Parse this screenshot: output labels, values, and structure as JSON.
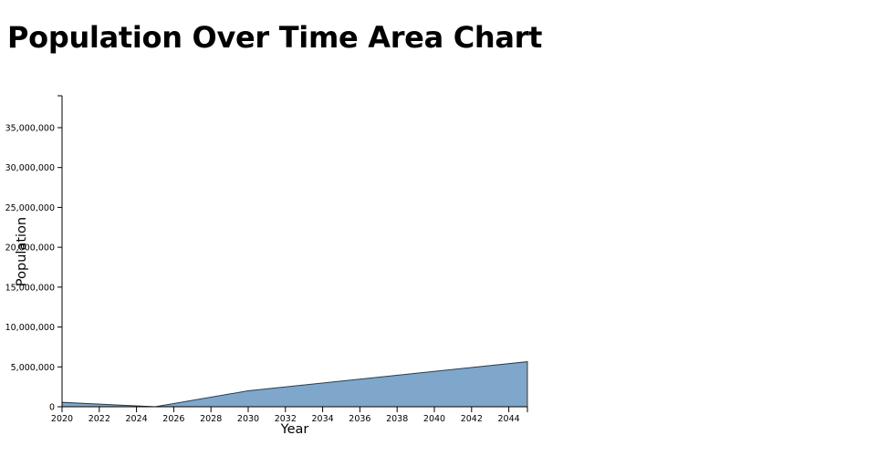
{
  "chart_data": {
    "type": "area",
    "title": "Population Over Time Area Chart",
    "xlabel": "Year",
    "ylabel": "Population",
    "x": [
      2020,
      2025,
      2030,
      2045
    ],
    "series": [
      {
        "values": [
          550000,
          0,
          2000000,
          5650000
        ]
      }
    ],
    "xlim": [
      2020,
      2045
    ],
    "ylim": [
      0,
      39000000
    ],
    "x_ticks": [
      2020,
      2022,
      2024,
      2026,
      2028,
      2030,
      2032,
      2034,
      2036,
      2038,
      2040,
      2042,
      2044
    ],
    "y_ticks": [
      0,
      5000000,
      10000000,
      15000000,
      20000000,
      25000000,
      30000000,
      35000000
    ],
    "x_tick_labels": [
      "2020",
      "2022",
      "2024",
      "2026",
      "2028",
      "2030",
      "2032",
      "2034",
      "2036",
      "2038",
      "2040",
      "2042",
      "2044"
    ],
    "y_tick_labels": [
      "0",
      "5,000,000",
      "10,000,000",
      "15,000,000",
      "20,000,000",
      "25,000,000",
      "30,000,000",
      "35,000,000"
    ],
    "grid": false,
    "colors": {
      "area_fill": "#7ea7cb",
      "area_stroke": "#3a3a3a",
      "axis": "#000000"
    }
  }
}
